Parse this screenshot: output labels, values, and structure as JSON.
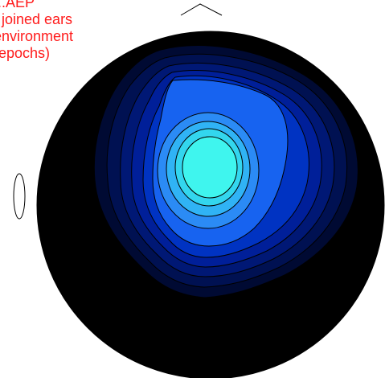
{
  "caption": {
    "lines": [
      "...AEP",
      "  joined ears",
      "environment",
      "(epochs)"
    ],
    "color": "#ff1b1b"
  },
  "topomap": {
    "background_color": "#000000",
    "outline_color": "#000000",
    "palette": [
      "#000000",
      "#000a33",
      "#001152",
      "#001875",
      "#001f99",
      "#0033c2",
      "#1763f0",
      "#2b8bf5",
      "#30b3f5",
      "#33d6ee",
      "#3ff5ee"
    ]
  }
}
